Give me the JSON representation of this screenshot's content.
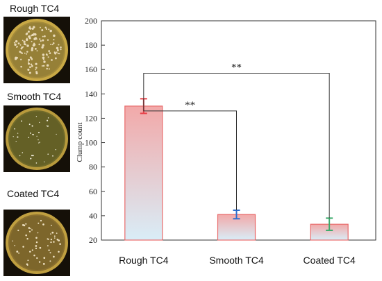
{
  "plates": [
    {
      "label": "Rough TC4",
      "icon": "petri-dish-dense-colonies"
    },
    {
      "label": "Smooth TC4",
      "icon": "petri-dish-sparse-colonies"
    },
    {
      "label": "Coated TC4",
      "icon": "petri-dish-sparse-colonies"
    }
  ],
  "chart_data": {
    "type": "bar",
    "categories": [
      "Rough TC4",
      "Smooth TC4",
      "Coated TC4"
    ],
    "values": [
      130,
      41,
      33
    ],
    "errors": [
      6,
      3.5,
      5
    ],
    "error_colors": [
      "#e8424a",
      "#2f6fd0",
      "#3aaa6a"
    ],
    "bar_edge_color": "#e86a6a",
    "bar_gradient": [
      "#f2a9a9",
      "#d9edf7"
    ],
    "ylabel": "Clump count",
    "ylim": [
      20,
      200
    ],
    "yticks": [
      20,
      40,
      60,
      80,
      100,
      120,
      140,
      160,
      180,
      200
    ],
    "grid": false,
    "significance": [
      {
        "from": "Rough TC4",
        "to": "Smooth TC4",
        "label": "**"
      },
      {
        "from": "Rough TC4",
        "to": "Coated TC4",
        "label": "**"
      }
    ]
  }
}
